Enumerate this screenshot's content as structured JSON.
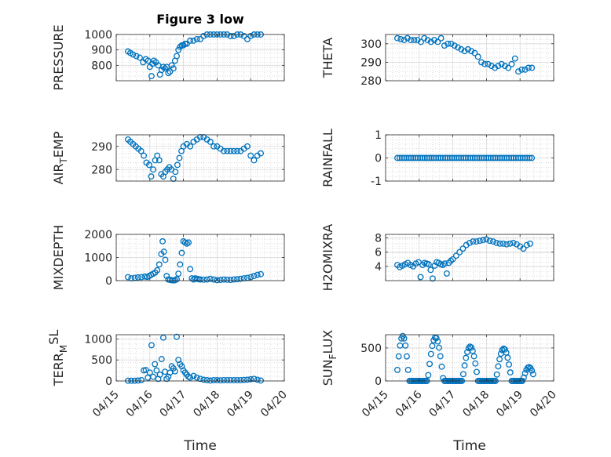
{
  "figure": {
    "title": "Figure 3 low",
    "marker_color": "#0072BD"
  },
  "chart_data": [
    {
      "type": "scatter",
      "title": "Figure 3 low",
      "ylabel": "PRESSURE",
      "xlabel": "",
      "ylim": [
        700,
        1000
      ],
      "yticks": [
        800,
        900,
        1000
      ],
      "xlim": [
        0,
        5
      ],
      "grid": true,
      "x": [
        0.35,
        0.42,
        0.5,
        0.6,
        0.7,
        0.8,
        0.88,
        0.95,
        1.0,
        1.05,
        1.08,
        1.12,
        1.18,
        1.25,
        1.3,
        1.35,
        1.4,
        1.45,
        1.5,
        1.55,
        1.6,
        1.65,
        1.7,
        1.75,
        1.8,
        1.85,
        1.9,
        1.95,
        2.0,
        2.05,
        2.1,
        2.2,
        2.3,
        2.4,
        2.5,
        2.6,
        2.7,
        2.8,
        2.9,
        3.0,
        3.1,
        3.2,
        3.3,
        3.4,
        3.5,
        3.6,
        3.7,
        3.8,
        3.9,
        4.0,
        4.1,
        4.2,
        4.3
      ],
      "y": [
        890,
        880,
        870,
        860,
        850,
        820,
        840,
        830,
        790,
        730,
        810,
        830,
        820,
        800,
        740,
        770,
        790,
        780,
        790,
        750,
        760,
        800,
        780,
        830,
        860,
        900,
        920,
        930,
        930,
        940,
        940,
        960,
        960,
        970,
        970,
        990,
        1000,
        1000,
        1000,
        1000,
        1000,
        1000,
        1000,
        990,
        990,
        1000,
        1000,
        990,
        970,
        990,
        1000,
        1000,
        1000
      ]
    },
    {
      "type": "scatter",
      "ylabel": "THETA",
      "xlabel": "",
      "ylim": [
        280,
        305
      ],
      "yticks": [
        280,
        290,
        300
      ],
      "xlim": [
        0,
        5
      ],
      "grid": true,
      "x": [
        0.35,
        0.45,
        0.55,
        0.65,
        0.75,
        0.85,
        0.95,
        1.05,
        1.15,
        1.25,
        1.35,
        1.45,
        1.55,
        1.65,
        1.75,
        1.85,
        1.95,
        2.05,
        2.15,
        2.25,
        2.35,
        2.45,
        2.55,
        2.65,
        2.75,
        2.85,
        2.95,
        3.05,
        3.15,
        3.25,
        3.35,
        3.45,
        3.55,
        3.65,
        3.75,
        3.85,
        3.95,
        4.05,
        4.15,
        4.25,
        4.35
      ],
      "y": [
        303,
        302.5,
        302,
        303,
        302,
        302,
        302,
        301,
        303,
        302,
        301,
        302,
        301,
        303,
        299,
        300,
        300,
        299,
        298,
        297,
        296,
        297,
        296,
        295,
        293,
        290,
        289,
        289,
        288,
        287,
        288,
        289,
        288,
        287,
        289,
        292,
        285,
        286,
        286,
        287,
        287
      ]
    },
    {
      "type": "scatter",
      "ylabel": "AIR_TEMP",
      "xlabel": "",
      "ylim": [
        275,
        295
      ],
      "yticks": [
        280,
        290
      ],
      "xlim": [
        0,
        5
      ],
      "grid": true,
      "x": [
        0.35,
        0.42,
        0.5,
        0.58,
        0.66,
        0.74,
        0.82,
        0.9,
        0.98,
        1.04,
        1.1,
        1.16,
        1.22,
        1.28,
        1.34,
        1.4,
        1.46,
        1.52,
        1.58,
        1.64,
        1.7,
        1.76,
        1.82,
        1.88,
        1.94,
        2.0,
        2.1,
        2.2,
        2.3,
        2.4,
        2.5,
        2.6,
        2.7,
        2.8,
        2.9,
        3.0,
        3.1,
        3.2,
        3.3,
        3.4,
        3.5,
        3.6,
        3.7,
        3.8,
        3.9,
        4.0,
        4.1,
        4.2,
        4.3
      ],
      "y": [
        293,
        292,
        291,
        290,
        289,
        288,
        286,
        283,
        282,
        277,
        280,
        284,
        286,
        284,
        278,
        277,
        279,
        280,
        281,
        280,
        276,
        279,
        282,
        285,
        288,
        290,
        291,
        290,
        292,
        293,
        294,
        294,
        293,
        292,
        290,
        290,
        289,
        288,
        288,
        288,
        288,
        288,
        288,
        289,
        290,
        286,
        284,
        286,
        287
      ]
    },
    {
      "type": "scatter",
      "ylabel": "RAINFALL",
      "xlabel": "",
      "ylim": [
        -1,
        1
      ],
      "yticks": [
        -1,
        0,
        1
      ],
      "xlim": [
        0,
        5
      ],
      "grid": true,
      "x_range": [
        0.35,
        4.35
      ],
      "y_constant": 0,
      "n_points": 60
    },
    {
      "type": "scatter",
      "ylabel": "MIXDEPTH",
      "xlabel": "",
      "ylim": [
        0,
        2000
      ],
      "yticks": [
        0,
        1000,
        2000
      ],
      "xlim": [
        0,
        5
      ],
      "grid": true,
      "x": [
        0.35,
        0.45,
        0.55,
        0.65,
        0.75,
        0.85,
        0.92,
        0.98,
        1.04,
        1.1,
        1.16,
        1.22,
        1.28,
        1.34,
        1.38,
        1.42,
        1.46,
        1.5,
        1.55,
        1.6,
        1.65,
        1.7,
        1.75,
        1.8,
        1.85,
        1.9,
        1.95,
        2.0,
        2.05,
        2.1,
        2.15,
        2.2,
        2.25,
        2.3,
        2.35,
        2.4,
        2.45,
        2.5,
        2.6,
        2.7,
        2.8,
        2.9,
        3.0,
        3.1,
        3.2,
        3.3,
        3.4,
        3.5,
        3.6,
        3.7,
        3.8,
        3.9,
        4.0,
        4.1,
        4.2,
        4.3
      ],
      "y": [
        150,
        100,
        120,
        140,
        150,
        180,
        160,
        200,
        250,
        300,
        350,
        450,
        700,
        1150,
        1700,
        1250,
        900,
        200,
        50,
        30,
        20,
        10,
        20,
        60,
        300,
        700,
        1200,
        1700,
        1650,
        1600,
        1650,
        500,
        100,
        50,
        100,
        80,
        60,
        50,
        40,
        50,
        80,
        50,
        20,
        30,
        50,
        40,
        30,
        50,
        60,
        80,
        100,
        120,
        150,
        200,
        250,
        280
      ]
    },
    {
      "type": "scatter",
      "ylabel": "H2OMIXRA",
      "xlabel": "",
      "ylim": [
        2,
        8.5
      ],
      "yticks": [
        4,
        6,
        8
      ],
      "xlim": [
        0,
        5
      ],
      "grid": true,
      "x": [
        0.35,
        0.42,
        0.5,
        0.58,
        0.66,
        0.74,
        0.82,
        0.9,
        0.98,
        1.04,
        1.1,
        1.16,
        1.22,
        1.28,
        1.34,
        1.4,
        1.46,
        1.52,
        1.58,
        1.64,
        1.7,
        1.76,
        1.82,
        1.88,
        1.94,
        2.0,
        2.1,
        2.2,
        2.3,
        2.4,
        2.5,
        2.6,
        2.7,
        2.8,
        2.9,
        3.0,
        3.1,
        3.2,
        3.3,
        3.4,
        3.5,
        3.6,
        3.7,
        3.8,
        3.9,
        4.0,
        4.1,
        4.2,
        4.3
      ],
      "y": [
        4.2,
        3.9,
        4.1,
        4.3,
        4.5,
        4.2,
        4.0,
        4.4,
        4.6,
        2.5,
        4.2,
        4.5,
        4.4,
        4.3,
        3.5,
        2.3,
        4.1,
        4.6,
        4.5,
        4.3,
        4.2,
        4.4,
        3.0,
        4.5,
        4.8,
        5.0,
        5.5,
        6.0,
        6.5,
        7.0,
        7.3,
        7.5,
        7.5,
        7.6,
        7.7,
        7.8,
        7.6,
        7.5,
        7.3,
        7.2,
        7.2,
        7.1,
        7.2,
        7.3,
        7.1,
        6.8,
        6.5,
        7.0,
        7.2
      ]
    },
    {
      "type": "scatter",
      "ylabel": "TERR_MSL",
      "xlabel": "Time",
      "ylim": [
        0,
        1100
      ],
      "yticks": [
        0,
        500,
        1000
      ],
      "xlim": [
        0,
        5
      ],
      "grid": true,
      "xticklabels": [
        "04/15",
        "04/16",
        "04/17",
        "04/18",
        "04/19",
        "04/20"
      ],
      "x": [
        0.35,
        0.45,
        0.55,
        0.65,
        0.75,
        0.82,
        0.88,
        0.94,
        1.0,
        1.05,
        1.1,
        1.15,
        1.2,
        1.25,
        1.3,
        1.35,
        1.4,
        1.45,
        1.5,
        1.55,
        1.6,
        1.65,
        1.7,
        1.75,
        1.8,
        1.85,
        1.9,
        1.95,
        2.0,
        2.05,
        2.1,
        2.15,
        2.2,
        2.3,
        2.4,
        2.5,
        2.6,
        2.7,
        2.8,
        2.9,
        3.0,
        3.1,
        3.2,
        3.3,
        3.4,
        3.5,
        3.6,
        3.7,
        3.8,
        3.9,
        4.0,
        4.1,
        4.2,
        4.3
      ],
      "y": [
        5,
        5,
        5,
        10,
        20,
        250,
        260,
        80,
        200,
        850,
        100,
        400,
        250,
        50,
        150,
        520,
        1030,
        220,
        50,
        100,
        200,
        350,
        300,
        230,
        1050,
        500,
        400,
        350,
        250,
        200,
        150,
        100,
        80,
        120,
        80,
        50,
        30,
        20,
        10,
        20,
        20,
        15,
        20,
        20,
        20,
        20,
        20,
        20,
        25,
        30,
        40,
        50,
        30,
        10
      ]
    },
    {
      "type": "scatter",
      "ylabel": "SUN_FLUX",
      "xlabel": "Time",
      "ylim": [
        0,
        700
      ],
      "yticks": [
        0,
        500
      ],
      "xlim": [
        0,
        5
      ],
      "grid": true,
      "xticklabels": [
        "04/15",
        "04/16",
        "04/17",
        "04/18",
        "04/19",
        "04/20"
      ],
      "days": [
        {
          "sunrise": 0.32,
          "sunset": 0.7,
          "peak": 680
        },
        {
          "sunrise": 1.25,
          "sunset": 1.72,
          "peak": 660
        },
        {
          "sunrise": 2.28,
          "sunset": 2.75,
          "peak": 520
        },
        {
          "sunrise": 3.28,
          "sunset": 3.75,
          "peak": 490
        },
        {
          "sunrise": 4.08,
          "sunset": 4.45,
          "peak": 210
        }
      ]
    }
  ]
}
